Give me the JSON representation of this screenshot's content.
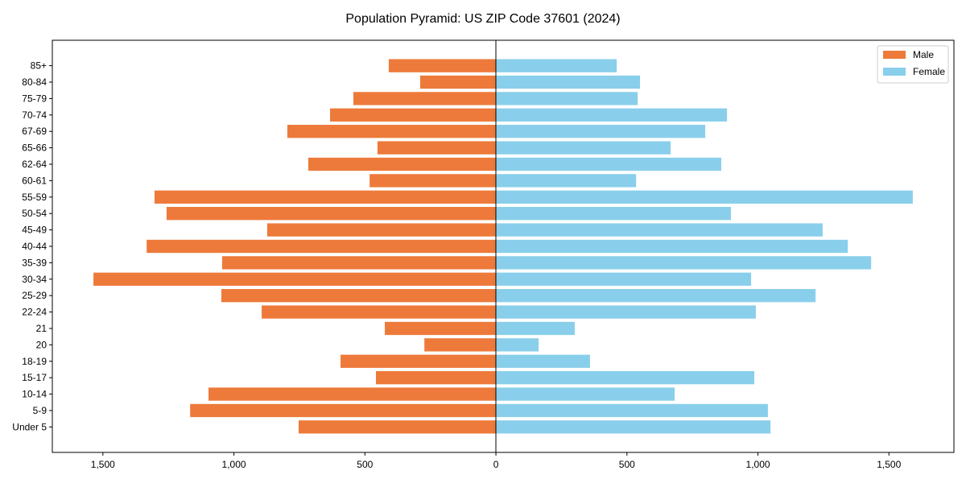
{
  "chart_data": {
    "type": "bar",
    "orientation": "horizontal-pyramid",
    "title": "Population Pyramid: US ZIP Code 37601 (2024)",
    "xlabel": "",
    "ylabel": "",
    "categories": [
      "85+",
      "80-84",
      "75-79",
      "70-74",
      "67-69",
      "65-66",
      "62-64",
      "60-61",
      "55-59",
      "50-54",
      "45-49",
      "40-44",
      "35-39",
      "30-34",
      "25-29",
      "22-24",
      "21",
      "20",
      "18-19",
      "15-17",
      "10-14",
      "5-9",
      "Under 5"
    ],
    "series": [
      {
        "name": "Male",
        "color": "#ED7A3A",
        "values": [
          409,
          289,
          544,
          633,
          796,
          452,
          716,
          482,
          1303,
          1257,
          873,
          1333,
          1045,
          1536,
          1048,
          894,
          424,
          273,
          593,
          458,
          1097,
          1167,
          753
        ]
      },
      {
        "name": "Female",
        "color": "#89CFEB",
        "values": [
          461,
          550,
          541,
          882,
          799,
          667,
          860,
          535,
          1591,
          897,
          1247,
          1343,
          1432,
          974,
          1220,
          992,
          301,
          163,
          359,
          986,
          682,
          1038,
          1048
        ]
      }
    ],
    "xlim": [
      -1693,
      1748
    ],
    "xticks": [
      -1500,
      -1000,
      -500,
      0,
      500,
      1000,
      1500
    ],
    "xtick_labels": [
      "1,500",
      "1,000",
      "500",
      "0",
      "500",
      "1,000",
      "1,500"
    ],
    "legend": {
      "position": "top-right",
      "entries": [
        "Male",
        "Female"
      ]
    },
    "grid": false
  }
}
